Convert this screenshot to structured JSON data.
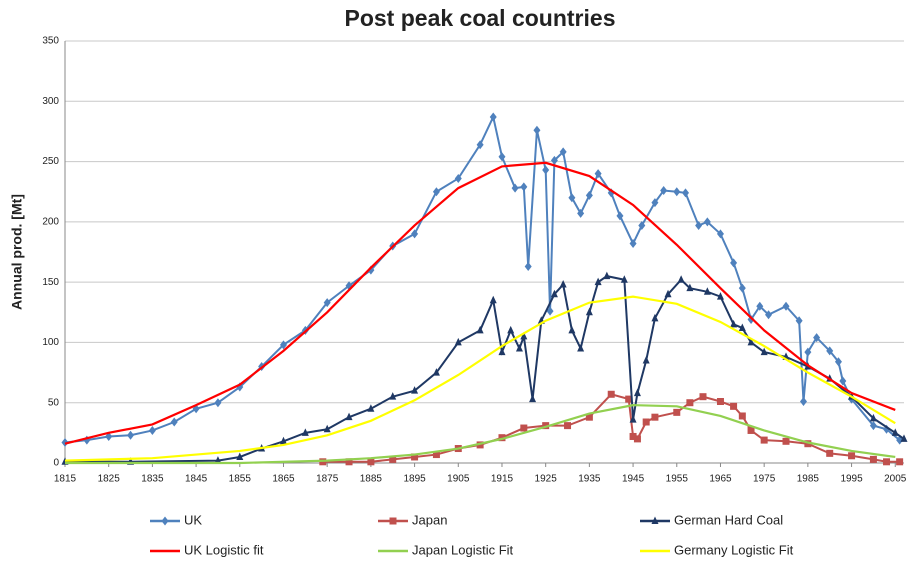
{
  "chart_data": {
    "type": "line",
    "title": "Post peak coal countries",
    "y_label": "Annual prod. [Mt]",
    "xlim": [
      1815,
      2007
    ],
    "ylim": [
      0,
      350
    ],
    "xticks": [
      1815,
      1825,
      1835,
      1845,
      1855,
      1865,
      1875,
      1885,
      1895,
      1905,
      1915,
      1925,
      1935,
      1945,
      1955,
      1965,
      1975,
      1985,
      1995,
      2005
    ],
    "yticks": [
      0,
      50,
      100,
      150,
      200,
      250,
      300,
      350
    ],
    "grid": true,
    "legend": "bottom",
    "series": [
      {
        "name": "UK",
        "color": "#4f81bd",
        "marker": "diamond",
        "x": [
          1815,
          1820,
          1825,
          1830,
          1835,
          1840,
          1845,
          1850,
          1855,
          1860,
          1865,
          1870,
          1875,
          1880,
          1885,
          1890,
          1895,
          1900,
          1905,
          1910,
          1913,
          1915,
          1918,
          1920,
          1921,
          1923,
          1925,
          1926,
          1927,
          1929,
          1931,
          1933,
          1935,
          1937,
          1940,
          1942,
          1945,
          1947,
          1950,
          1952,
          1955,
          1957,
          1960,
          1962,
          1965,
          1968,
          1970,
          1972,
          1974,
          1976,
          1980,
          1983,
          1984,
          1985,
          1987,
          1990,
          1992,
          1993,
          1995,
          2000,
          2003,
          2006
        ],
        "values": [
          17,
          19,
          22,
          23,
          27,
          34,
          45,
          50,
          63,
          80,
          98,
          110,
          133,
          147,
          160,
          180,
          190,
          225,
          236,
          264,
          287,
          254,
          228,
          229,
          163,
          276,
          243,
          126,
          251,
          258,
          220,
          207,
          222,
          240,
          224,
          205,
          182,
          197,
          216,
          226,
          225,
          224,
          197,
          200,
          190,
          166,
          145,
          119,
          130,
          123,
          130,
          118,
          51,
          92,
          104,
          93,
          84,
          68,
          53,
          31,
          28,
          19
        ]
      },
      {
        "name": "Japan",
        "color": "#c0504d",
        "marker": "square",
        "x": [
          1874,
          1880,
          1885,
          1890,
          1895,
          1900,
          1905,
          1910,
          1915,
          1920,
          1925,
          1930,
          1935,
          1940,
          1944,
          1945,
          1946,
          1948,
          1950,
          1955,
          1958,
          1961,
          1965,
          1968,
          1970,
          1972,
          1975,
          1980,
          1985,
          1990,
          1995,
          2000,
          2003,
          2006
        ],
        "values": [
          1,
          1,
          1,
          3,
          5,
          7,
          12,
          15,
          21,
          29,
          31,
          31,
          38,
          57,
          53,
          22,
          20,
          34,
          38,
          42,
          50,
          55,
          51,
          47,
          39,
          27,
          19,
          18,
          16,
          8,
          6,
          3,
          1,
          1
        ]
      },
      {
        "name": "German Hard Coal",
        "color": "#1f3864",
        "marker": "triangle",
        "x": [
          1815,
          1830,
          1850,
          1855,
          1860,
          1865,
          1870,
          1875,
          1880,
          1885,
          1890,
          1895,
          1900,
          1905,
          1910,
          1913,
          1915,
          1917,
          1919,
          1920,
          1922,
          1924,
          1927,
          1929,
          1931,
          1933,
          1935,
          1937,
          1939,
          1943,
          1945,
          1946,
          1948,
          1950,
          1953,
          1956,
          1958,
          1962,
          1965,
          1968,
          1970,
          1972,
          1975,
          1980,
          1985,
          1990,
          1995,
          2000,
          2005,
          2007
        ],
        "values": [
          1,
          1,
          2,
          5,
          12,
          18,
          25,
          28,
          38,
          45,
          55,
          60,
          75,
          100,
          110,
          135,
          92,
          110,
          95,
          105,
          53,
          118,
          140,
          148,
          110,
          95,
          125,
          150,
          155,
          152,
          36,
          58,
          85,
          120,
          140,
          152,
          145,
          142,
          138,
          115,
          112,
          100,
          92,
          88,
          80,
          70,
          55,
          37,
          25,
          20
        ]
      },
      {
        "name": "UK Logistic fit",
        "color": "#ff0000",
        "x": [
          1815,
          1825,
          1835,
          1845,
          1855,
          1865,
          1875,
          1885,
          1895,
          1905,
          1915,
          1925,
          1935,
          1945,
          1955,
          1965,
          1975,
          1985,
          1995,
          2005
        ],
        "values": [
          16,
          25,
          32,
          48,
          65,
          93,
          125,
          162,
          197,
          228,
          246,
          249,
          238,
          214,
          181,
          145,
          110,
          81,
          58,
          44
        ]
      },
      {
        "name": "Japan Logistic Fit",
        "color": "#92d050",
        "x": [
          1815,
          1855,
          1875,
          1885,
          1895,
          1905,
          1915,
          1925,
          1935,
          1945,
          1955,
          1965,
          1975,
          1985,
          1995,
          2005
        ],
        "values": [
          0,
          0,
          2,
          4,
          7,
          12,
          20,
          30,
          41,
          48,
          47,
          39,
          27,
          17,
          10,
          5
        ]
      },
      {
        "name": "Germany Logistic Fit",
        "color": "#ffff00",
        "x": [
          1815,
          1835,
          1855,
          1865,
          1875,
          1885,
          1895,
          1905,
          1915,
          1925,
          1935,
          1945,
          1955,
          1965,
          1975,
          1985,
          1995,
          2005
        ],
        "values": [
          2,
          4,
          10,
          15,
          23,
          35,
          52,
          73,
          97,
          118,
          133,
          138,
          132,
          117,
          97,
          75,
          55,
          33
        ]
      }
    ]
  }
}
